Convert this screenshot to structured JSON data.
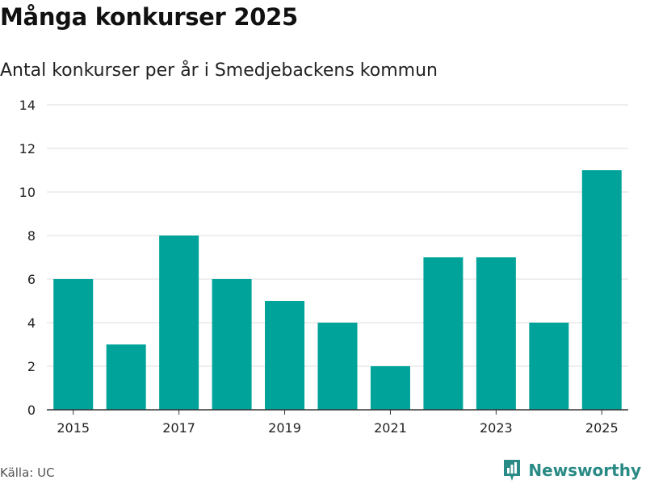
{
  "header": {
    "title": "Många konkurser 2025",
    "subtitle": "Antal konkurser per år i Smedjebackens kommun"
  },
  "footer": {
    "source": "Källa: UC",
    "brand": "Newsworthy",
    "brand_icon": "newsworthy-logo-icon"
  },
  "colors": {
    "bar": "#00a39a",
    "brand": "#2a8a85"
  },
  "chart_data": {
    "type": "bar",
    "title": "Många konkurser 2025",
    "subtitle": "Antal konkurser per år i Smedjebackens kommun",
    "categories": [
      "2015",
      "2016",
      "2017",
      "2018",
      "2019",
      "2020",
      "2021",
      "2022",
      "2023",
      "2024",
      "2025"
    ],
    "values": [
      6,
      3,
      8,
      6,
      5,
      4,
      2,
      7,
      7,
      4,
      11
    ],
    "x_tick_labels": [
      "2015",
      "2017",
      "2019",
      "2021",
      "2023",
      "2025"
    ],
    "y_ticks": [
      0,
      2,
      4,
      6,
      8,
      10,
      12,
      14
    ],
    "ylim": [
      0,
      14
    ],
    "xlabel": "",
    "ylabel": "",
    "grid": true,
    "legend": "none"
  }
}
